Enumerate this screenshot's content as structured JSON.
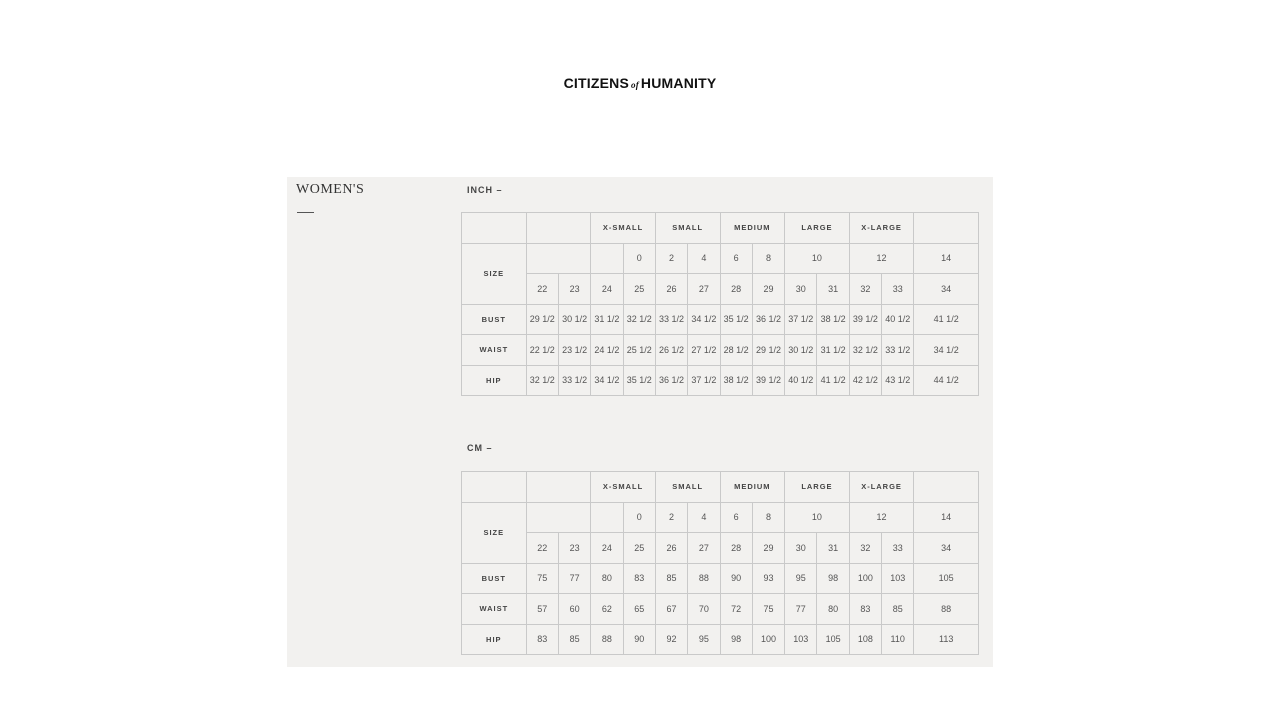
{
  "brand": {
    "left": "CITIZENS",
    "mid": "of",
    "right": "HUMANITY"
  },
  "section_title": "WOMEN'S",
  "tables": [
    {
      "unit_label": "INCH –",
      "groups": [
        "X-SMALL",
        "SMALL",
        "MEDIUM",
        "LARGE",
        "X-LARGE"
      ],
      "size_label": "SIZE",
      "us_sizes": {
        "xs": "0",
        "s1": "2",
        "s2": "4",
        "m1": "6",
        "m2": "8",
        "l": "10",
        "xl": "12",
        "last": "14"
      },
      "waist_sizes": [
        "22",
        "23",
        "24",
        "25",
        "26",
        "27",
        "28",
        "29",
        "30",
        "31",
        "32",
        "33",
        "34"
      ],
      "rows": [
        {
          "label": "BUST",
          "values": [
            "29 1/2",
            "30 1/2",
            "31 1/2",
            "32 1/2",
            "33 1/2",
            "34 1/2",
            "35 1/2",
            "36 1/2",
            "37 1/2",
            "38 1/2",
            "39 1/2",
            "40 1/2",
            "41 1/2"
          ]
        },
        {
          "label": "WAIST",
          "values": [
            "22 1/2",
            "23 1/2",
            "24 1/2",
            "25 1/2",
            "26 1/2",
            "27 1/2",
            "28 1/2",
            "29 1/2",
            "30 1/2",
            "31 1/2",
            "32 1/2",
            "33 1/2",
            "34 1/2"
          ]
        },
        {
          "label": "HIP",
          "values": [
            "32 1/2",
            "33 1/2",
            "34 1/2",
            "35 1/2",
            "36 1/2",
            "37 1/2",
            "38 1/2",
            "39 1/2",
            "40 1/2",
            "41 1/2",
            "42 1/2",
            "43 1/2",
            "44 1/2"
          ]
        }
      ]
    },
    {
      "unit_label": "CM –",
      "groups": [
        "X-SMALL",
        "SMALL",
        "MEDIUM",
        "LARGE",
        "X-LARGE"
      ],
      "size_label": "SIZE",
      "us_sizes": {
        "xs": "0",
        "s1": "2",
        "s2": "4",
        "m1": "6",
        "m2": "8",
        "l": "10",
        "xl": "12",
        "last": "14"
      },
      "waist_sizes": [
        "22",
        "23",
        "24",
        "25",
        "26",
        "27",
        "28",
        "29",
        "30",
        "31",
        "32",
        "33",
        "34"
      ],
      "rows": [
        {
          "label": "BUST",
          "values": [
            "75",
            "77",
            "80",
            "83",
            "85",
            "88",
            "90",
            "93",
            "95",
            "98",
            "100",
            "103",
            "105"
          ]
        },
        {
          "label": "WAIST",
          "values": [
            "57",
            "60",
            "62",
            "65",
            "67",
            "70",
            "72",
            "75",
            "77",
            "80",
            "83",
            "85",
            "88"
          ]
        },
        {
          "label": "HIP",
          "values": [
            "83",
            "85",
            "88",
            "90",
            "92",
            "95",
            "98",
            "100",
            "103",
            "105",
            "108",
            "110",
            "113"
          ]
        }
      ]
    }
  ]
}
